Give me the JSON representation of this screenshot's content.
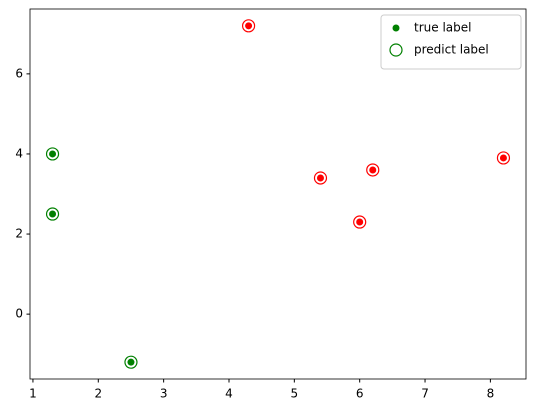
{
  "chart_data": {
    "type": "scatter",
    "x": [
      1.3,
      1.3,
      2.5,
      4.3,
      5.4,
      6.2,
      6.0,
      8.2
    ],
    "series": [
      {
        "name": "true label",
        "color": "green",
        "marker": "dot",
        "values": [
          4.0,
          2.5,
          -1.2,
          7.2,
          3.4,
          3.6,
          2.3,
          3.9
        ],
        "colors": [
          "green",
          "green",
          "green",
          "red",
          "red",
          "red",
          "red",
          "red"
        ]
      },
      {
        "name": "predict label",
        "color": "green",
        "marker": "ring",
        "values": [
          4.0,
          2.5,
          -1.2,
          7.2,
          3.4,
          3.6,
          2.3,
          3.9
        ],
        "colors": [
          "green",
          "green",
          "green",
          "red",
          "red",
          "red",
          "red",
          "red"
        ]
      }
    ],
    "xlim": [
      0.955,
      8.545
    ],
    "ylim": [
      -1.62,
      7.62
    ],
    "xticks": [
      1,
      2,
      3,
      4,
      5,
      6,
      7,
      8
    ],
    "yticks": [
      0,
      2,
      4,
      6
    ],
    "legend": "upper right"
  }
}
